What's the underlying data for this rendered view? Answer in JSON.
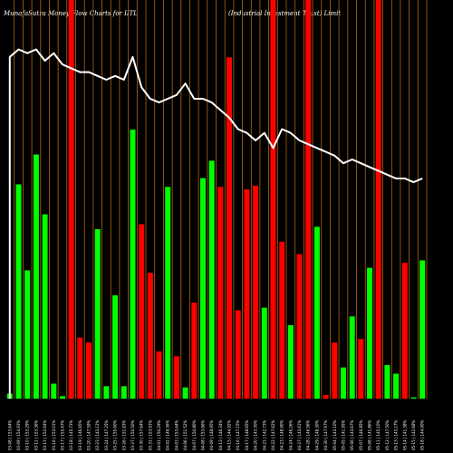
{
  "chart_data": {
    "type": "bar",
    "title_left": "MunafaSutra  Money Flow  Charts for IITL",
    "title_right": "(Industrial Investment Trust) Limit",
    "colors": {
      "up": "#00ff00",
      "down": "#ff0000",
      "line": "#ffffff",
      "grid": "#b8650a",
      "background": "#000000"
    },
    "categories": [
      "03-08 | 153.64%",
      "03-09 | 154.93%",
      "03-10 | 153.29%",
      "03-12 | 153.36%",
      "03-13 | 152.64%",
      "03-16 | 153.01%",
      "03-17 | 155.47%",
      "03-18 | 145.73%",
      "03-19 | 146.65%",
      "03-20 | 147.59%",
      "03-23 | 143.12%",
      "03-24 | 147.25%",
      "03-25 | 155.60%",
      "03-26 | 151.63%",
      "03-27 | 150.50%",
      "03-30 | 157.64%",
      "03-31 | 153.91%",
      "04-01 | 150.29%",
      "04-02 | 149.36%",
      "04-03 | 153.64%",
      "04-06 | 151.52%",
      "04-07 | 150.80%",
      "04-08 | 153.66%",
      "04-09 | 148.95%",
      "04-13 | 146.34%",
      "04-15 | 144.92%",
      "04-16 | 147.15%",
      "04-17 | 148.65%",
      "04-20 | 143.30%",
      "04-21 | 142.73%",
      "04-22 | 147.62%",
      "04-23 | 148.90%",
      "04-24 | 146.26%",
      "04-27 | 143.61%",
      "04-28 | 146.56%",
      "04-29 | 148.30%",
      "04-30 | 147.97%",
      "05-04 | 143.10%",
      "05-05 | 141.95%",
      "05-06 | 143.67%",
      "05-07 | 146.85%",
      "05-08 | 141.86%",
      "05-11 | 145.10%",
      "05-12 | 147.50%",
      "05-13 | 143.27%",
      "05-14 | 141.38%",
      "05-15 | 142.68%",
      "05-18 | 144.90%"
    ],
    "bar_directions": [
      "up",
      "up",
      "up",
      "up",
      "up",
      "up",
      "up",
      "down",
      "down",
      "down",
      "up",
      "up",
      "up",
      "up",
      "up",
      "down",
      "down",
      "down",
      "up",
      "down",
      "up",
      "down",
      "up",
      "up",
      "down",
      "down",
      "down",
      "down",
      "down",
      "up",
      "down",
      "down",
      "up",
      "down",
      "down",
      "up",
      "down",
      "down",
      "up",
      "up",
      "down",
      "up",
      "down",
      "up",
      "up",
      "down",
      "up",
      "up"
    ],
    "bar_values": [
      4,
      172,
      103,
      196,
      148,
      12,
      2,
      495,
      49,
      45,
      136,
      10,
      83,
      10,
      216,
      140,
      101,
      38,
      170,
      34,
      9,
      77,
      177,
      191,
      170,
      274,
      71,
      168,
      171,
      73,
      1000,
      126,
      59,
      116,
      1000,
      138,
      3,
      45,
      25,
      66,
      48,
      105,
      1000,
      27,
      20,
      109,
      1,
      111
    ],
    "line_values": [
      90,
      92,
      91,
      92,
      89,
      91,
      88,
      87,
      86,
      86,
      85,
      84,
      85,
      84,
      90,
      82,
      79,
      78,
      79,
      80,
      83,
      79,
      79,
      78,
      76,
      74,
      71,
      70,
      68,
      70,
      66,
      71,
      70,
      68,
      67,
      66,
      65,
      64,
      62,
      63,
      62,
      61,
      60,
      59,
      58,
      58,
      57,
      58
    ],
    "ylim": [
      0,
      320
    ],
    "line_ylim": [
      0,
      105
    ],
    "grid": true
  }
}
